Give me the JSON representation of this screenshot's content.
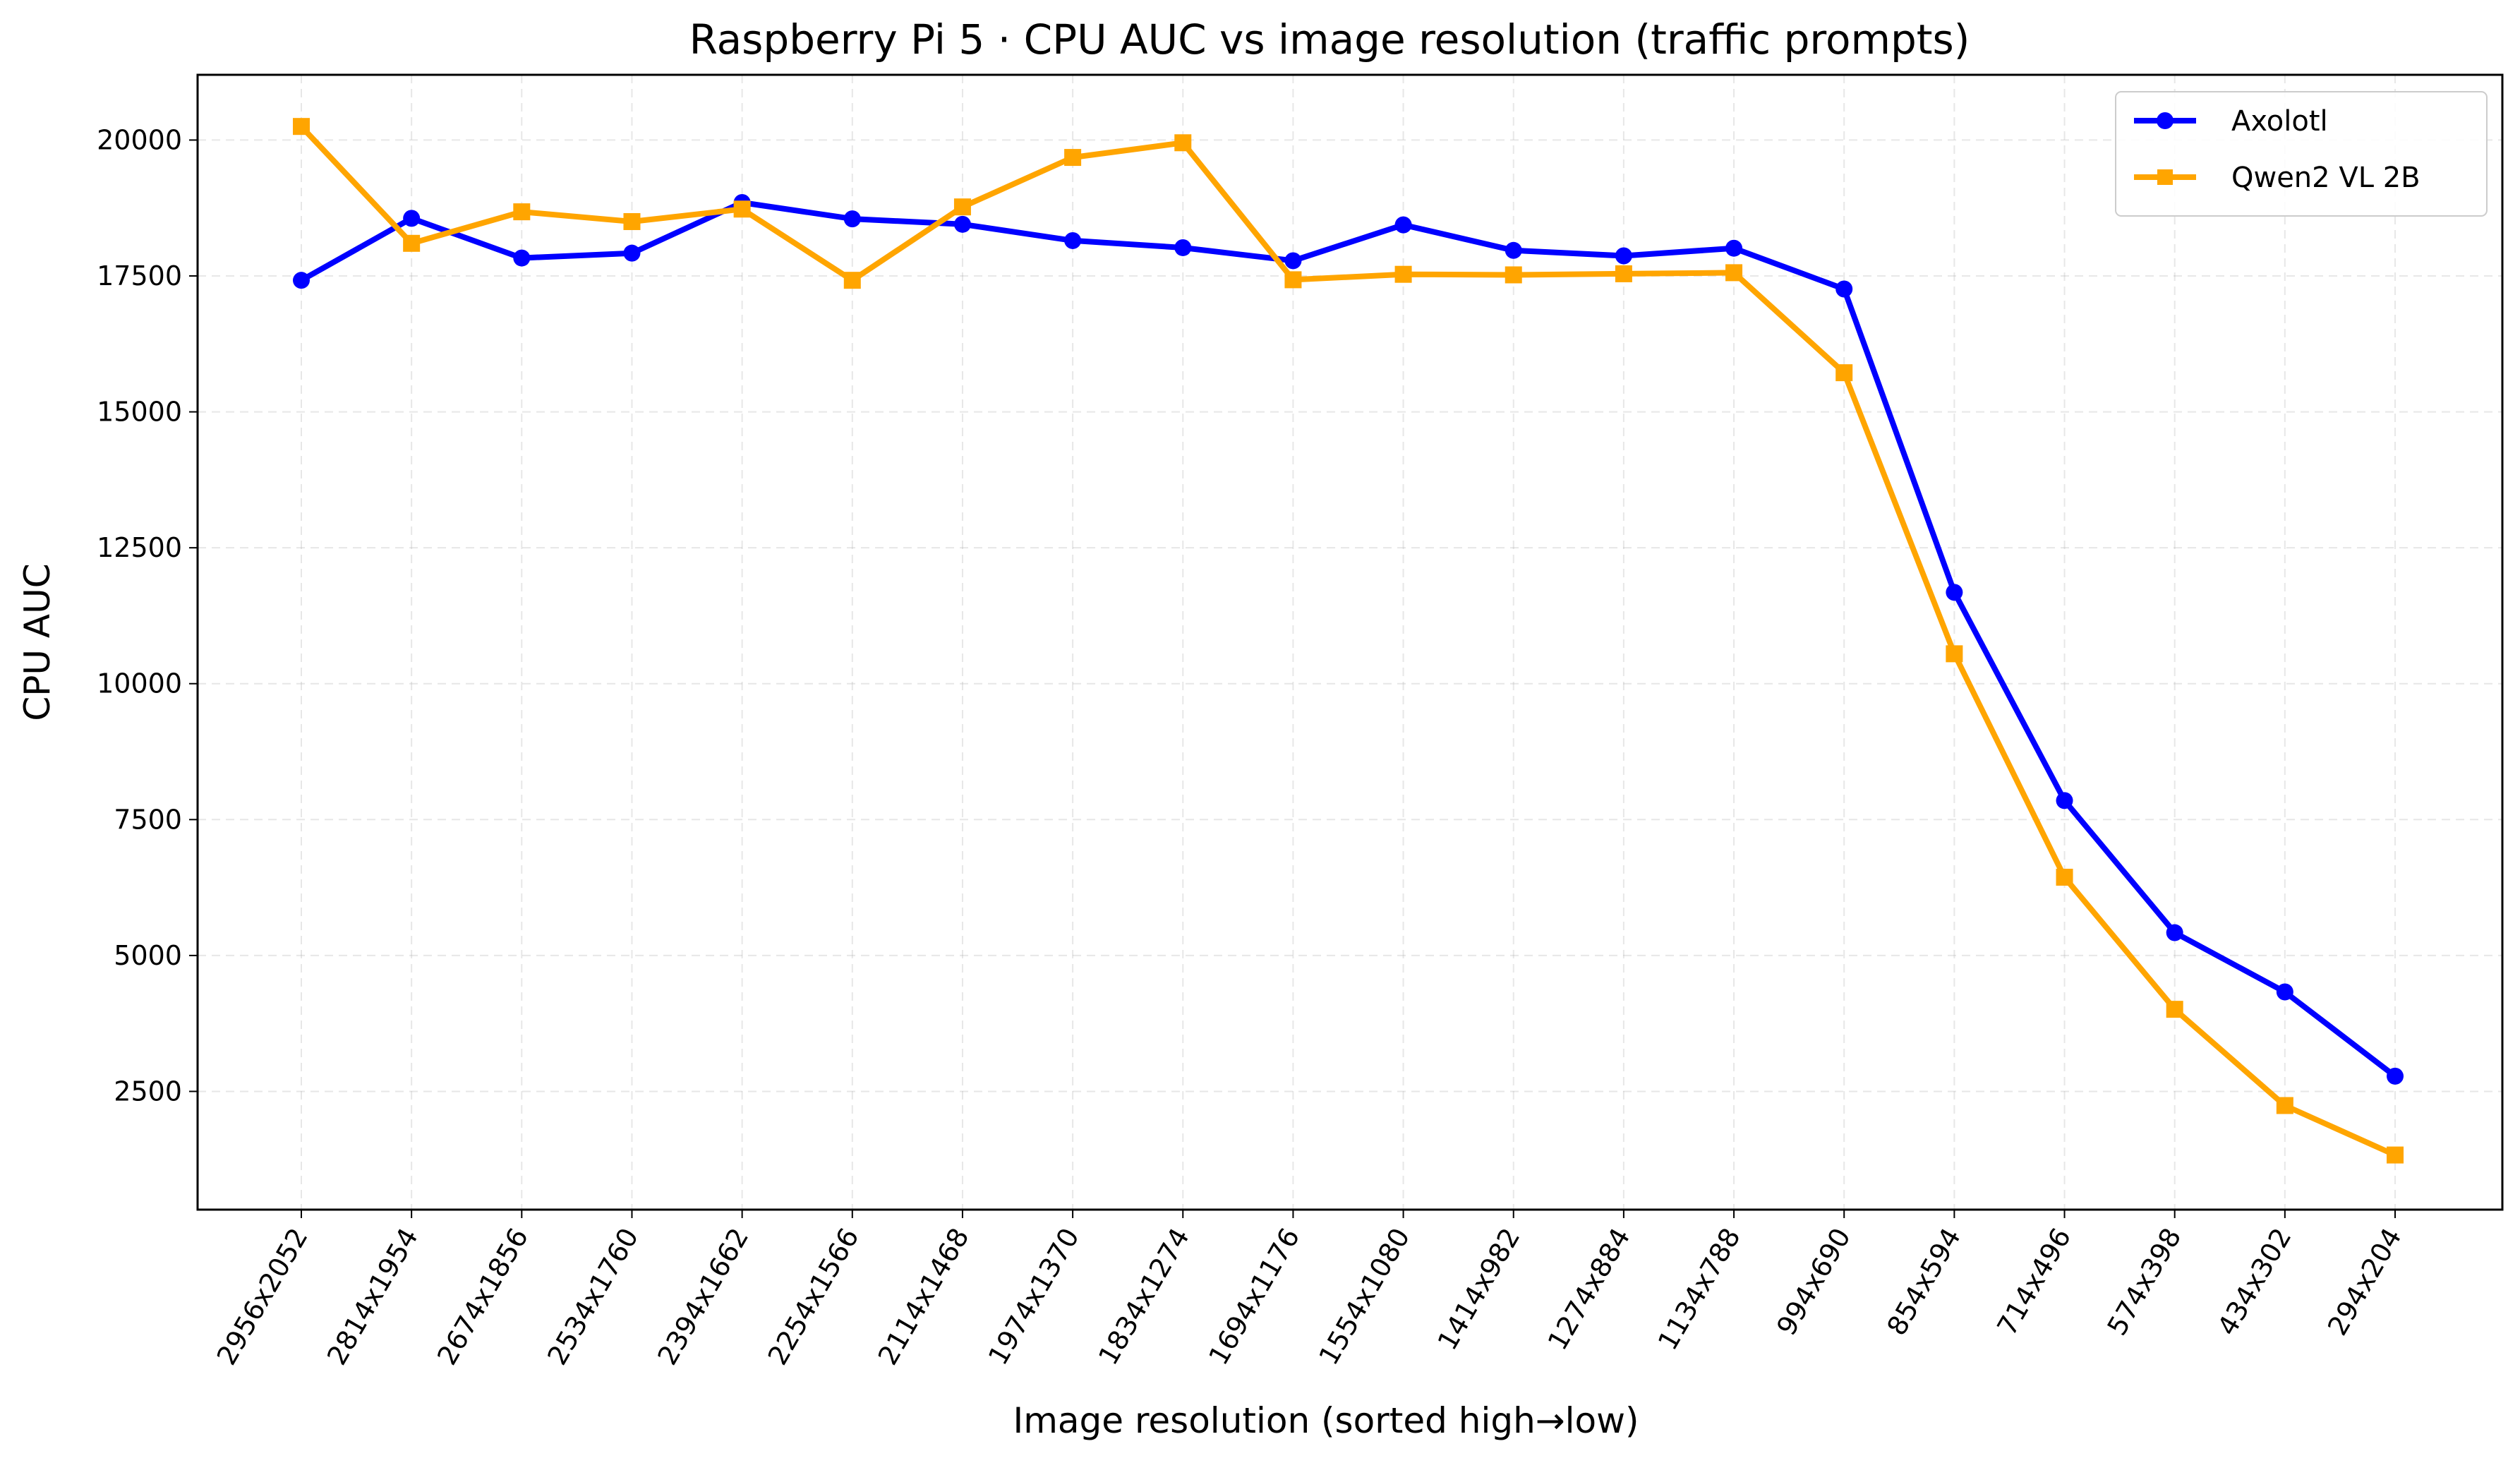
{
  "chart_data": {
    "type": "line",
    "title": "Raspberry Pi 5 · CPU AUC vs image resolution (traffic prompts)",
    "xlabel": "Image resolution (sorted high→low)",
    "ylabel": "CPU AUC",
    "categories": [
      "2956x2052",
      "2814x1954",
      "2674x1856",
      "2534x1760",
      "2394x1662",
      "2254x1566",
      "2114x1468",
      "1974x1370",
      "1834x1274",
      "1694x1176",
      "1554x1080",
      "1414x982",
      "1274x884",
      "1134x788",
      "994x690",
      "854x594",
      "714x496",
      "574x398",
      "434x302",
      "294x204"
    ],
    "ylim": [
      325,
      21200
    ],
    "yticks": [
      2500,
      5000,
      7500,
      10000,
      12500,
      15000,
      17500,
      20000
    ],
    "grid": true,
    "legend_position": "top-right",
    "series": [
      {
        "name": "Axolotl",
        "color": "#0000ff",
        "marker": "circle",
        "values": [
          17420,
          18560,
          17830,
          17920,
          18850,
          18550,
          18450,
          18150,
          18020,
          17780,
          18440,
          17970,
          17870,
          18010,
          17260,
          11680,
          7850,
          5420,
          4330,
          2780
        ]
      },
      {
        "name": "Qwen2 VL 2B",
        "color": "#ffa500",
        "marker": "square",
        "values": [
          20250,
          18100,
          18680,
          18500,
          18730,
          17420,
          18770,
          19680,
          19950,
          17430,
          17530,
          17520,
          17540,
          17560,
          15720,
          10550,
          6440,
          4010,
          2240,
          1330
        ]
      }
    ]
  }
}
